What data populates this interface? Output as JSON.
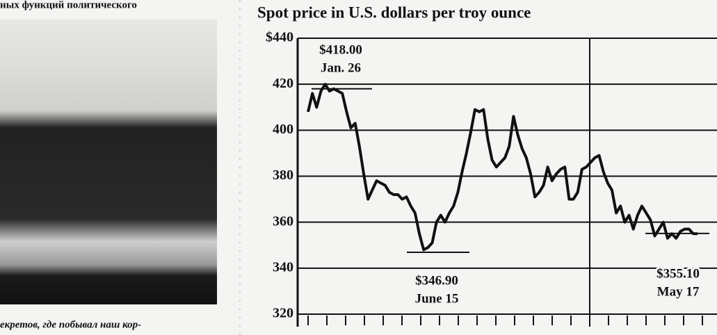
{
  "header_fragment": "ных функций политического",
  "caption_fragment": "екретов, где побывал наш кор-",
  "chart_data": {
    "type": "line",
    "title": "Spot price in U.S. dollars per troy ounce",
    "color": "#111111",
    "grid": true,
    "ylim": [
      320,
      440
    ],
    "yticks": [
      320,
      340,
      360,
      380,
      400,
      420,
      {
        "value": 440,
        "label": "$440"
      }
    ],
    "values": [
      408,
      416,
      410,
      417,
      420,
      417,
      418,
      417,
      416,
      408,
      401,
      403,
      393,
      381,
      370,
      374,
      378,
      377,
      376,
      373,
      372,
      372,
      370,
      371,
      367,
      364,
      355,
      348,
      349,
      351,
      360,
      363,
      360,
      364,
      367,
      373,
      382,
      390,
      399,
      409,
      408,
      409,
      396,
      387,
      384,
      386,
      388,
      393,
      406,
      398,
      392,
      388,
      381,
      371,
      373,
      376,
      384,
      378,
      381,
      383,
      384,
      370,
      370,
      373,
      383,
      384,
      386,
      388,
      389,
      382,
      377,
      374,
      364,
      367,
      360,
      363,
      357,
      363,
      367,
      364,
      361,
      354,
      357,
      360,
      353,
      355,
      353,
      356,
      357,
      357,
      355,
      355
    ],
    "annotations": [
      {
        "value": 418.0,
        "label": "$418.00",
        "date": "Jan. 26"
      },
      {
        "value": 346.9,
        "label": "$346.90",
        "date": "June 15"
      },
      {
        "value": 355.1,
        "label": "$355.10",
        "date": "May 17"
      }
    ]
  }
}
